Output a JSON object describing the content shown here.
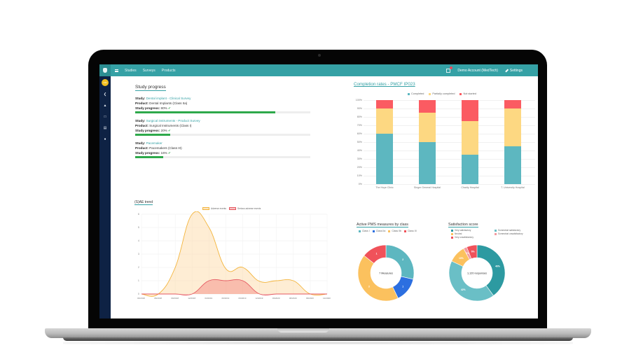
{
  "topbar": {
    "nav": [
      "Studies",
      "Surveys",
      "Products"
    ],
    "account": "Demo Account (MedTech)",
    "settings": "Settings",
    "notification_count": "1"
  },
  "sidebar": {
    "avatar_initials": "DM",
    "icons": [
      "chevron-left-icon",
      "warning-icon",
      "note-icon",
      "document-icon",
      "info-icon"
    ]
  },
  "study_progress": {
    "title": "Study progress",
    "studies": [
      {
        "study_label": "Study:",
        "study": "Dental implant - Clinical Survey",
        "product_label": "Product:",
        "product": "Dental Implants (Class IIa)",
        "progress_label": "Study progress:",
        "progress": "80%",
        "value": 80
      },
      {
        "study_label": "Study:",
        "study": "Surgical instruments - Product Survey",
        "product_label": "Product:",
        "product": "Surgical Instruments (Class I)",
        "progress_label": "Study progress:",
        "progress": "20%",
        "value": 20
      },
      {
        "study_label": "Study:",
        "study": "Pacemaker",
        "product_label": "Product:",
        "product": "Pacemakers (Class III)",
        "progress_label": "Study progress:",
        "progress": "16%",
        "value": 16
      }
    ]
  },
  "colors": {
    "teal": "#35a1a5",
    "navy": "#0e2244",
    "completed": "#5db7c0",
    "partial": "#fdd882",
    "not_started": "#fb5b62",
    "progress_green": "#2ea94b",
    "adverse": "#f3b43b",
    "serious": "#e5565f"
  },
  "chart_data": [
    {
      "type": "bar",
      "stacked": true,
      "title": "Completion rates - PMCF IP023",
      "categories": [
        "The Hoye Clinic",
        "Singer General Hospital",
        "Charity Hospital",
        "T. University Hospital"
      ],
      "series": [
        {
          "name": "Completed",
          "values": [
            60,
            50,
            35,
            45
          ]
        },
        {
          "name": "Partially completed",
          "values": [
            30,
            35,
            40,
            45
          ]
        },
        {
          "name": "Not started",
          "values": [
            10,
            15,
            25,
            10
          ]
        }
      ],
      "yticks": [
        "0%",
        "10%",
        "20%",
        "30%",
        "40%",
        "50%",
        "60%",
        "70%",
        "80%",
        "90%",
        "100%"
      ],
      "ylim": [
        0,
        100
      ],
      "legend_position": "top"
    },
    {
      "type": "area",
      "title": "(S)AE trend",
      "x": [
        "03/2018",
        "06/2018",
        "09/2018",
        "12/2018",
        "03/2019",
        "06/2019",
        "09/2019",
        "12/2019",
        "03/2020",
        "06/2020",
        "09/2020",
        "12/2020"
      ],
      "series": [
        {
          "name": "Adverse events",
          "values": [
            0,
            0,
            2,
            6,
            5,
            1.9,
            2,
            0.95,
            1,
            1,
            0,
            0
          ]
        },
        {
          "name": "Serious adverse events",
          "values": [
            0,
            0,
            0,
            0,
            1,
            1,
            1,
            0,
            0,
            0,
            0,
            0
          ]
        }
      ],
      "yticks": [
        "0",
        "1",
        "2",
        "3",
        "4",
        "5",
        "6"
      ],
      "ylim": [
        0,
        6
      ],
      "grid": true,
      "legend_position": "top"
    },
    {
      "type": "pie",
      "donut": true,
      "title": "Active PMS measures by class",
      "center_label": "7 Measures",
      "labels": [
        "Class I",
        "Class IIa",
        "Class IIb",
        "Class III"
      ],
      "values": [
        2,
        1,
        3,
        1
      ],
      "colors": [
        "#5db7c0",
        "#2c6fe0",
        "#fbc15e",
        "#f0525a"
      ]
    },
    {
      "type": "pie",
      "donut": true,
      "title": "Satisfaction score",
      "center_label": "1,120 responses",
      "labels": [
        "Very satisfactory",
        "Somewhat satisfactory",
        "Neutral",
        "Somewhat unsatisfactory",
        "Very unsatisfactory"
      ],
      "values": [
        40,
        42,
        10,
        2,
        6
      ],
      "value_labels": [
        "40%",
        "42%",
        "10%",
        "2%",
        "6%"
      ],
      "colors": [
        "#2d9aa1",
        "#6abfc6",
        "#fbc15e",
        "#f39aa0",
        "#f0525a"
      ]
    }
  ]
}
